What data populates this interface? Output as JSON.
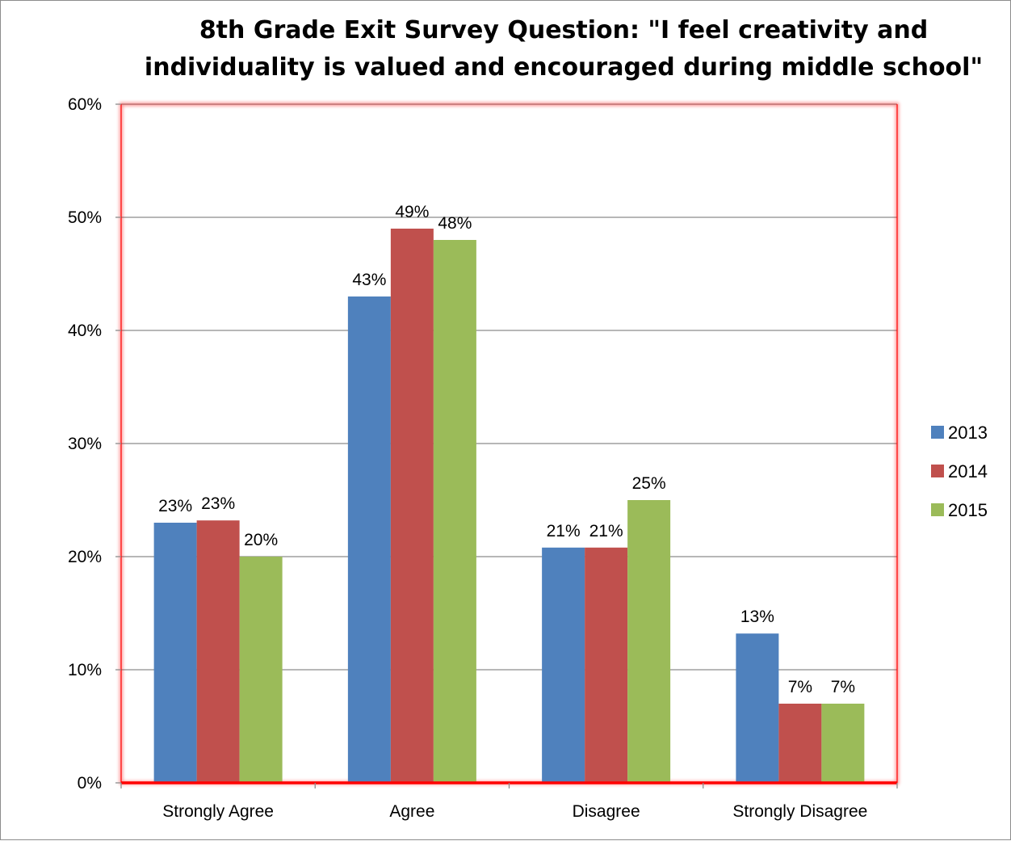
{
  "chart_data": {
    "type": "bar",
    "title_lines": [
      "8th Grade Exit Survey Question: \"I feel creativity and",
      "individuality is valued and encouraged during middle school\""
    ],
    "categories": [
      "Strongly Agree",
      "Agree",
      "Disagree",
      "Strongly Disagree"
    ],
    "series": [
      {
        "name": "2013",
        "color": "#4f81bd",
        "values": [
          23,
          43,
          20.8,
          13.2
        ],
        "labels": [
          "23%",
          "43%",
          "21%",
          "13%"
        ]
      },
      {
        "name": "2014",
        "color": "#c0504d",
        "values": [
          23.2,
          49,
          20.8,
          7
        ],
        "labels": [
          "23%",
          "49%",
          "21%",
          "7%"
        ]
      },
      {
        "name": "2015",
        "color": "#9bbb59",
        "values": [
          20,
          48,
          25,
          7
        ],
        "labels": [
          "20%",
          "48%",
          "25%",
          "7%"
        ]
      }
    ],
    "ylim": [
      0,
      60
    ],
    "yticks": [
      0,
      10,
      20,
      30,
      40,
      50,
      60
    ],
    "ytick_labels": [
      "0%",
      "10%",
      "20%",
      "30%",
      "40%",
      "50%",
      "60%"
    ],
    "xlabel": "",
    "ylabel": "",
    "grid": true,
    "legend_position": "right",
    "plot_border_color": "#ff0000"
  }
}
